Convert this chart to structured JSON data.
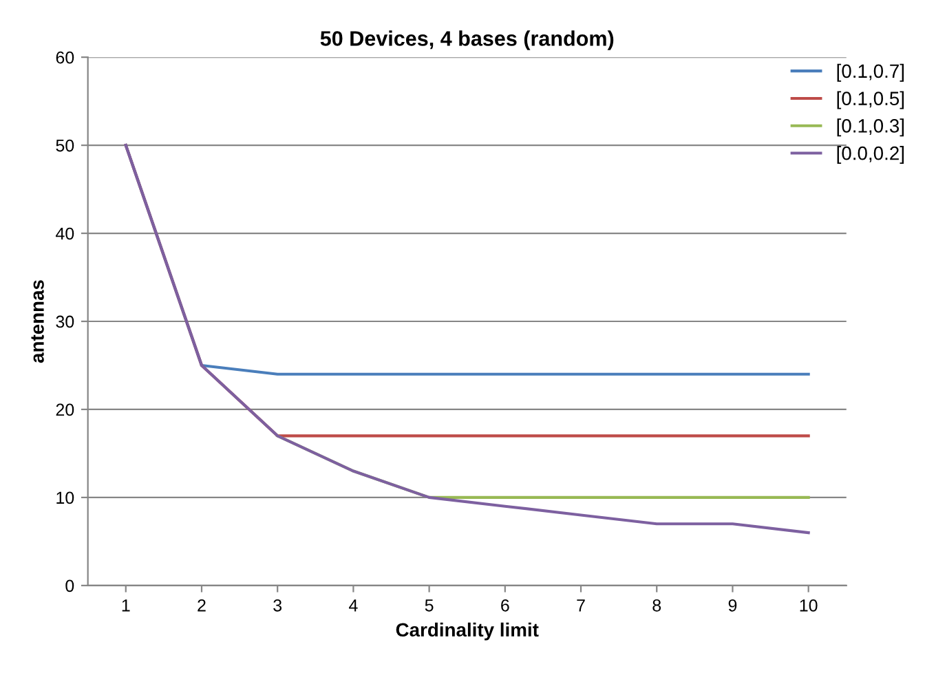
{
  "chart_data": {
    "type": "line",
    "title": "50 Devices, 4 bases (random)",
    "xlabel": "Cardinality limit",
    "ylabel": "antennas",
    "categories": [
      "1",
      "2",
      "3",
      "4",
      "5",
      "6",
      "7",
      "8",
      "9",
      "10"
    ],
    "series": [
      {
        "name": "[0.1,0.7]",
        "color": "#4a7ebb",
        "values": [
          50,
          25,
          24,
          24,
          24,
          24,
          24,
          24,
          24,
          24
        ]
      },
      {
        "name": "[0.1,0.5]",
        "color": "#be4b48",
        "values": [
          50,
          25,
          17,
          17,
          17,
          17,
          17,
          17,
          17,
          17
        ]
      },
      {
        "name": "[0.1,0.3]",
        "color": "#98b954",
        "values": [
          null,
          null,
          17,
          13,
          10,
          10,
          10,
          10,
          10,
          10
        ]
      },
      {
        "name": "[0.0,0.2]",
        "color": "#7d60a0",
        "values": [
          50,
          25,
          17,
          13,
          10,
          9,
          8,
          7,
          7,
          6
        ]
      }
    ],
    "ylim": [
      0,
      60
    ],
    "yticks": [
      0,
      10,
      20,
      30,
      40,
      50,
      60
    ],
    "grid": "y",
    "legend": "top right",
    "marker": "none",
    "line_style": "solid"
  }
}
